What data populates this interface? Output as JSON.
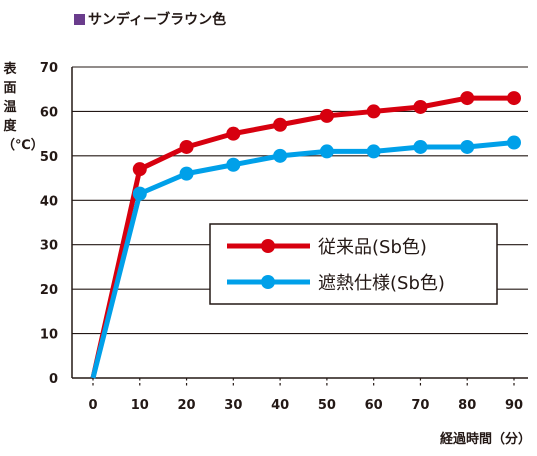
{
  "subtitle": {
    "text": "サンディーブラウン色",
    "marker_color": "#6a3c8c"
  },
  "chart_data": {
    "type": "line",
    "title": "",
    "xlabel": "経過時間（分）",
    "ylabel": "表面温度（℃）",
    "x": [
      0,
      10,
      20,
      30,
      40,
      50,
      60,
      70,
      80,
      90
    ],
    "xlim": [
      0,
      90
    ],
    "ylim": [
      0,
      70
    ],
    "yticks": [
      0,
      10,
      20,
      30,
      40,
      50,
      60,
      70
    ],
    "xticks": [
      0,
      10,
      20,
      30,
      40,
      50,
      60,
      70,
      80,
      90
    ],
    "grid": true,
    "legend_position": "center-right",
    "series": [
      {
        "name": "従来品(Sb色)",
        "color": "#d7000f",
        "values": [
          0,
          47,
          52,
          55,
          57,
          59,
          60,
          61,
          63,
          63
        ]
      },
      {
        "name": "遮熱仕様(Sb色)",
        "color": "#00a0e9",
        "values": [
          0,
          41.5,
          46,
          48,
          50,
          51,
          51,
          52,
          52,
          53
        ]
      }
    ]
  }
}
